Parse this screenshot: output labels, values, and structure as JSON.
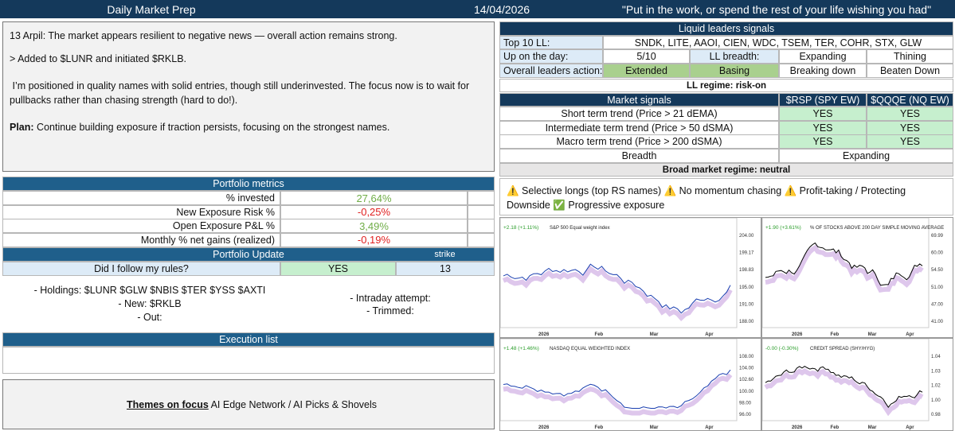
{
  "header": {
    "title": "Daily Market Prep",
    "date": "14/04/2026",
    "quote": "\"Put in the work, or spend the rest of your life wishing you had\""
  },
  "notes": {
    "line1": "13 Arpil: The market appears resilient to negative news — overall action remains strong.",
    "line2": "> Added to $LUNR and initiated $RKLB.",
    "line3": " I’m positioned in quality names with solid entries, though still underinvested. The focus now is to wait for",
    "line4": "pullbacks rather than chasing strength (hard to do!).",
    "plan_label": "Plan:",
    "plan_text": " Continue building exposure if traction persists, focusing on the strongest names."
  },
  "portfolio_metrics": {
    "title": "Portfolio metrics",
    "rows": [
      {
        "label": "% invested",
        "value": "27,64%",
        "color": "#70ad47"
      },
      {
        "label": "New Exposure Risk %",
        "value": "-0,25%",
        "color": "#e02020"
      },
      {
        "label": "Open Exposure P&L %",
        "value": "3,49%",
        "color": "#70ad47"
      },
      {
        "label": "Monthly % net gains (realized)",
        "value": "-0,19%",
        "color": "#e02020"
      }
    ]
  },
  "portfolio_update": {
    "title": "Portfolio Update",
    "strike_label": "strike",
    "question": "Did I follow my rules?",
    "answer": "YES",
    "strike": "13",
    "holdings": [
      "- Holdings: $LUNR $GLW $NBIS $TER $YSS $AXTI",
      "- New: $RKLB",
      "- Out:"
    ],
    "intraday": [
      "- Intraday attempt:",
      "- Trimmed:"
    ]
  },
  "execution_list": {
    "title": "Execution list"
  },
  "themes": {
    "label": "Themes on focus",
    "text": " AI Edge Network / AI Picks & Shovels"
  },
  "liquid_leaders": {
    "title": "Liquid leaders signals",
    "top10_label": "Top 10 LL:",
    "top10": "SNDK, LITE, AAOI, CIEN, WDC, TSEM, TER, COHR, STX, GLW",
    "up_label": "Up on the day:",
    "up_value": "5/10",
    "breadth_label": "LL breadth:",
    "breadth_options": [
      "Expanding",
      "Thining"
    ],
    "action_label": "Overall leaders action:",
    "action_options": [
      "Extended",
      "Basing",
      "Breaking down",
      "Beaten Down"
    ]
  },
  "ll_regime": "LL regime: risk-on",
  "market_signals": {
    "title": "Market signals",
    "columns": [
      "$RSP (SPY EW)",
      "$QQQE (NQ EW)"
    ],
    "rows": [
      {
        "label": "Short term trend (Price > 21 dEMA)",
        "values": [
          "YES",
          "YES"
        ]
      },
      {
        "label": "Intermediate term trend (Price > 50 dSMA)",
        "values": [
          "YES",
          "YES"
        ]
      },
      {
        "label": "Macro term trend (Price > 200 dSMA)",
        "values": [
          "YES",
          "YES"
        ]
      }
    ],
    "breadth_label": "Breadth",
    "breadth_value": "Expanding"
  },
  "broad_regime": "Broad market regime: neutral",
  "bullets": {
    "line1": "⚠️ Selective longs (top RS names) ⚠️ No momentum chasing ⚠️ Profit-taking / Protecting",
    "line2": "Downside ✅ Progressive exposure"
  },
  "charts": [
    {
      "title": "S&P 500 Equal weight index",
      "change": "+2.18 (+1.11%)",
      "yticks": [
        "204.00",
        "199.17",
        "198.83",
        "195.00",
        "191.00",
        "188.00"
      ],
      "xticks": [
        "2026",
        "Feb",
        "Mar",
        "Apr"
      ]
    },
    {
      "title": "% OF STOCKS ABOVE 200 DAY SIMPLE MOVING AVERAGE",
      "change": "+1.90 (+3.61%)",
      "yticks": [
        "69.99",
        "60.00",
        "54.50",
        "51.00",
        "47.00",
        "41.00"
      ],
      "xticks": [
        "2026",
        "Feb",
        "Mar",
        "Apr"
      ]
    },
    {
      "title": "NASDAQ EQUAL WEIGHTED INDEX",
      "change": "+1.48 (+1.46%)",
      "yticks": [
        "108.00",
        "104.00",
        "102.60",
        "100.00",
        "98.00",
        "96.00"
      ],
      "xticks": [
        "2026",
        "Feb",
        "Mar",
        "Apr"
      ]
    },
    {
      "title": "CREDIT SPREAD (SHY/HYG)",
      "change": "-0.00 (-0.30%)",
      "yticks": [
        "1.04",
        "1.03",
        "1.02",
        "1.00",
        "0.98"
      ],
      "xticks": [
        "2026",
        "Feb",
        "Mar",
        "Apr"
      ]
    }
  ]
}
